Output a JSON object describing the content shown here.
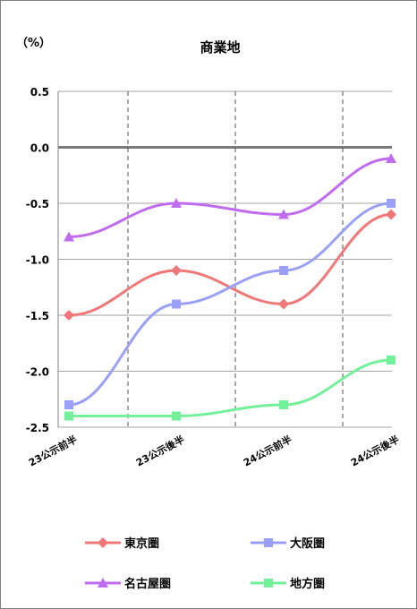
{
  "chart_data": {
    "type": "line",
    "title": "商業地",
    "unit_label": "（%）",
    "categories": [
      "23公示前半",
      "23公示後半",
      "24公示前半",
      "24公示後半"
    ],
    "ylim": [
      -2.5,
      0.5
    ],
    "yticks": [
      "0.5",
      "0.0",
      "-0.5",
      "-1.0",
      "-1.5",
      "-2.0",
      "-2.5"
    ],
    "grid": "horizontal gridlines; dashed vertical separators between periods",
    "legend_position": "bottom",
    "series": [
      {
        "name": "東京圏",
        "values": [
          -1.5,
          -1.1,
          -1.4,
          -0.6
        ],
        "color": "#f07878",
        "marker": "diamond"
      },
      {
        "name": "大阪圏",
        "values": [
          -2.3,
          -1.4,
          -1.1,
          -0.5
        ],
        "color": "#9aa0f5",
        "marker": "square"
      },
      {
        "name": "名古屋圏",
        "values": [
          -0.8,
          -0.5,
          -0.6,
          -0.1
        ],
        "color": "#c06cf0",
        "marker": "triangle"
      },
      {
        "name": "地方圏",
        "values": [
          -2.4,
          -2.4,
          -2.3,
          -1.9
        ],
        "color": "#73f099",
        "marker": "square"
      }
    ]
  }
}
